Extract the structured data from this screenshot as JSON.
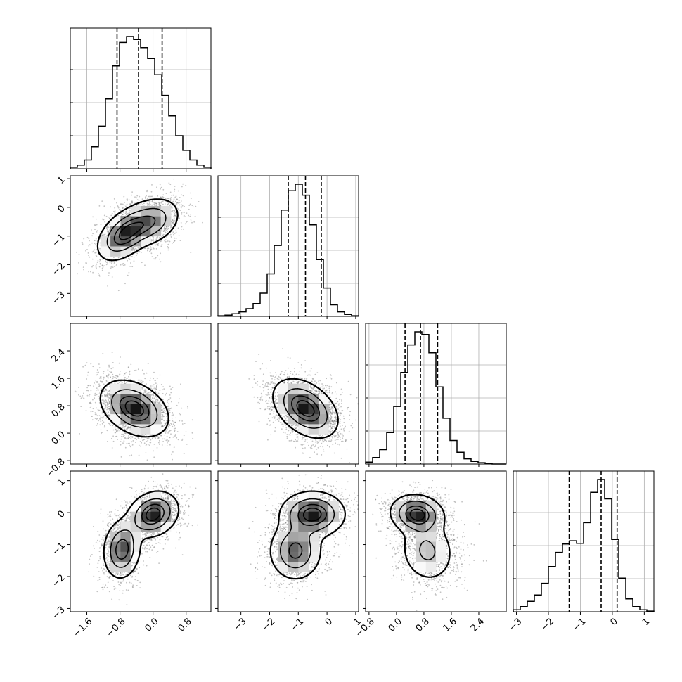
{
  "chart_data": {
    "type": "corner",
    "title": "",
    "params": [
      {
        "xlim": [
          -2.0,
          1.4
        ],
        "xticks": [
          -1.6,
          -0.8,
          0.0,
          0.8
        ],
        "xtick_labels": [
          "−1.6",
          "−0.8",
          "0.0",
          "0.8"
        ],
        "quantiles": [
          -0.87,
          -0.35,
          0.22
        ]
      },
      {
        "xlim": [
          -3.8,
          1.1
        ],
        "xticks": [
          -3,
          -2,
          -1,
          0,
          1
        ],
        "xtick_labels": [
          "−3",
          "−2",
          "−1",
          "0",
          "1"
        ],
        "quantiles": [
          -1.35,
          -0.75,
          -0.2
        ]
      },
      {
        "xlim": [
          -0.9,
          3.2
        ],
        "xticks": [
          -0.8,
          0.0,
          0.8,
          1.6,
          2.4
        ],
        "xtick_labels": [
          "−0.8",
          "0.0",
          "0.8",
          "1.6",
          "2.4"
        ],
        "quantiles": [
          0.25,
          0.7,
          1.2
        ]
      },
      {
        "xlim": [
          -3.1,
          1.3
        ],
        "xticks": [
          -3,
          -2,
          -1,
          0,
          1
        ],
        "xtick_labels": [
          "−3",
          "−2",
          "−1",
          "0",
          "1"
        ],
        "quantiles": [
          -1.35,
          -0.35,
          0.15
        ]
      }
    ],
    "row_ytick_labels": {
      "1": {
        "ticks": [
          1,
          0,
          -1,
          -2,
          -3
        ],
        "labels": [
          "1",
          "0",
          "−1",
          "−2",
          "−3"
        ]
      },
      "2": {
        "ticks": [
          2.4,
          1.6,
          0.8,
          0.0,
          -0.8
        ],
        "labels": [
          "2.4",
          "1.6",
          "0.8",
          "0.0",
          "−0.8"
        ]
      },
      "3": {
        "ticks": [
          1,
          0,
          -1,
          -2,
          -3
        ],
        "labels": [
          "1",
          "0",
          "−1",
          "−2",
          "−3"
        ]
      }
    },
    "histograms": [
      {
        "counts": [
          2,
          5,
          12,
          30,
          58,
          95,
          140,
          172,
          180,
          176,
          165,
          150,
          128,
          100,
          72,
          45,
          25,
          12,
          5,
          2
        ]
      },
      {
        "counts": [
          1,
          2,
          4,
          7,
          12,
          20,
          36,
          66,
          110,
          165,
          195,
          205,
          188,
          142,
          88,
          44,
          18,
          7,
          3,
          1
        ]
      },
      {
        "counts": [
          3,
          10,
          22,
          48,
          88,
          140,
          182,
          202,
          198,
          170,
          118,
          70,
          36,
          18,
          8,
          4,
          2,
          1,
          0,
          0
        ]
      },
      {
        "counts": [
          3,
          8,
          16,
          26,
          44,
          70,
          92,
          105,
          110,
          106,
          138,
          185,
          205,
          175,
          112,
          52,
          20,
          8,
          3,
          1
        ]
      }
    ],
    "pair_densities": [
      {
        "row": 1,
        "col": 0,
        "components": [
          {
            "mx": -0.7,
            "my": -0.95,
            "sx": 0.32,
            "sy": 0.45,
            "rho": 0.45,
            "w": 0.55
          },
          {
            "mx": -0.05,
            "my": -0.5,
            "sx": 0.35,
            "sy": 0.42,
            "rho": 0.3,
            "w": 0.45
          }
        ]
      },
      {
        "row": 2,
        "col": 0,
        "components": [
          {
            "mx": -0.45,
            "my": 0.72,
            "sx": 0.4,
            "sy": 0.4,
            "rho": -0.35,
            "w": 1.0
          }
        ]
      },
      {
        "row": 2,
        "col": 1,
        "components": [
          {
            "mx": -0.75,
            "my": 0.72,
            "sx": 0.55,
            "sy": 0.42,
            "rho": -0.4,
            "w": 1.0
          }
        ]
      },
      {
        "row": 3,
        "col": 0,
        "components": [
          {
            "mx": 0.0,
            "my": -0.05,
            "sx": 0.3,
            "sy": 0.35,
            "rho": 0.2,
            "w": 0.55
          },
          {
            "mx": -0.75,
            "my": -1.15,
            "sx": 0.22,
            "sy": 0.45,
            "rho": 0.1,
            "w": 0.45
          }
        ]
      },
      {
        "row": 3,
        "col": 1,
        "components": [
          {
            "mx": -0.5,
            "my": -0.05,
            "sx": 0.55,
            "sy": 0.35,
            "rho": 0.0,
            "w": 0.55
          },
          {
            "mx": -1.1,
            "my": -1.2,
            "sx": 0.45,
            "sy": 0.45,
            "rho": 0.0,
            "w": 0.45
          }
        ]
      },
      {
        "row": 3,
        "col": 2,
        "components": [
          {
            "mx": 0.6,
            "my": -0.05,
            "sx": 0.38,
            "sy": 0.3,
            "rho": -0.1,
            "w": 0.55
          },
          {
            "mx": 0.9,
            "my": -1.2,
            "sx": 0.4,
            "sy": 0.5,
            "rho": -0.1,
            "w": 0.45
          }
        ]
      }
    ],
    "contour_levels": [
      0.12,
      0.39,
      0.68,
      0.86
    ],
    "grid": true
  }
}
